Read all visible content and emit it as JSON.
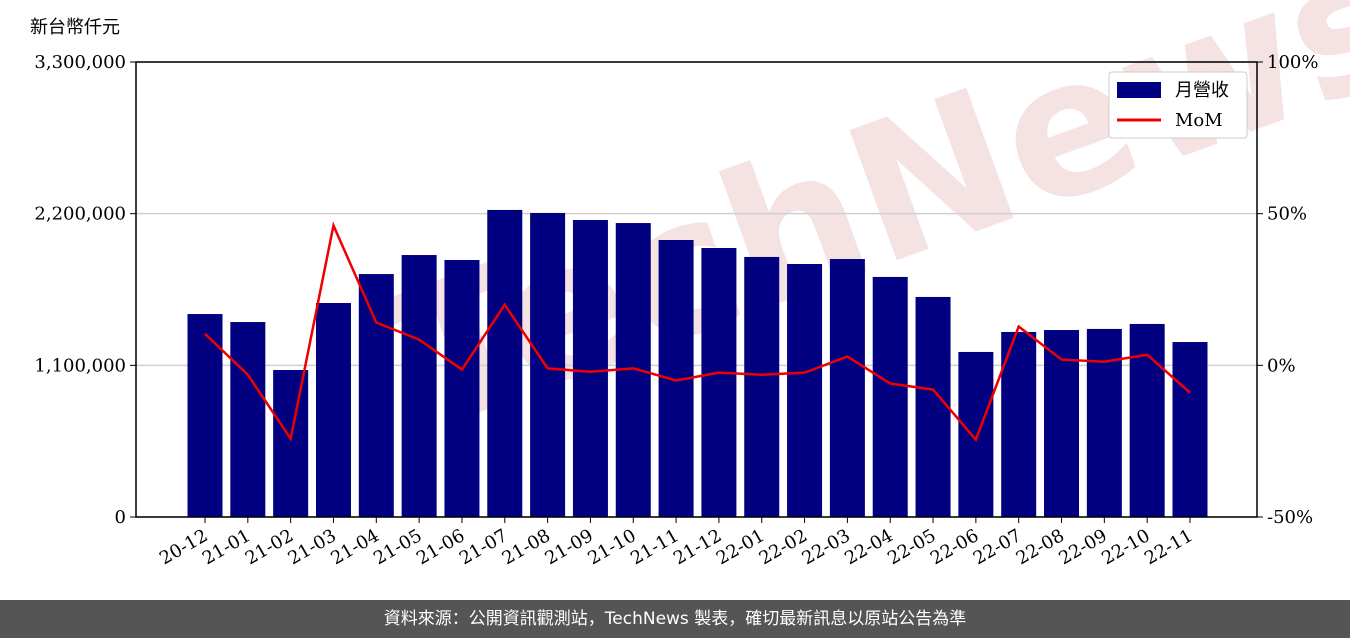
{
  "chart_data": {
    "type": "bar-line",
    "y_label": "新台幣仟元",
    "watermark": "TechNews",
    "footer": "資料來源：公開資訊觀測站，TechNews 製表，確切最新訊息以原站公告為準",
    "categories": [
      "20-12",
      "21-01",
      "21-02",
      "21-03",
      "21-04",
      "21-05",
      "21-06",
      "21-07",
      "21-08",
      "21-09",
      "21-10",
      "21-11",
      "21-12",
      "22-01",
      "22-02",
      "22-03",
      "22-04",
      "22-05",
      "22-06",
      "22-07",
      "22-08",
      "22-09",
      "22-10",
      "22-11"
    ],
    "series": [
      {
        "name": "月營收",
        "type": "bar",
        "color": "#000080",
        "values": [
          1472000,
          1414000,
          1066000,
          1552000,
          1762000,
          1900000,
          1864000,
          2227000,
          2205000,
          2154000,
          2132000,
          2009000,
          1951000,
          1886000,
          1835000,
          1871000,
          1741000,
          1596000,
          1197000,
          1342000,
          1356000,
          1364000,
          1400000,
          1269000
        ]
      },
      {
        "name": "MoM",
        "type": "line",
        "axis": "y2",
        "color": "#ee0000",
        "values": [
          10.4,
          -3.1,
          -24.2,
          46.1,
          14.1,
          8.5,
          -1.4,
          20.0,
          -1.0,
          -2.1,
          -1.0,
          -5.0,
          -2.4,
          -3.1,
          -2.4,
          2.9,
          -6.0,
          -8.0,
          -24.5,
          12.8,
          1.9,
          1.2,
          3.5,
          -9.0
        ]
      }
    ],
    "ylim": [
      0,
      3300000
    ],
    "yticks": [
      0,
      {
        "value": 1100000,
        "label": "1,100,000"
      },
      {
        "value": 2200000,
        "label": "2,200,000"
      },
      {
        "value": 3300000,
        "label": "3,300,000"
      }
    ],
    "y2lim": [
      -50,
      100
    ],
    "y2ticks": [
      {
        "value": -50,
        "label": "-50%"
      },
      {
        "value": 0,
        "label": "0%"
      },
      {
        "value": 50,
        "label": "50%"
      },
      {
        "value": 100,
        "label": "100%"
      }
    ],
    "grid": true,
    "legend": "upper right"
  }
}
